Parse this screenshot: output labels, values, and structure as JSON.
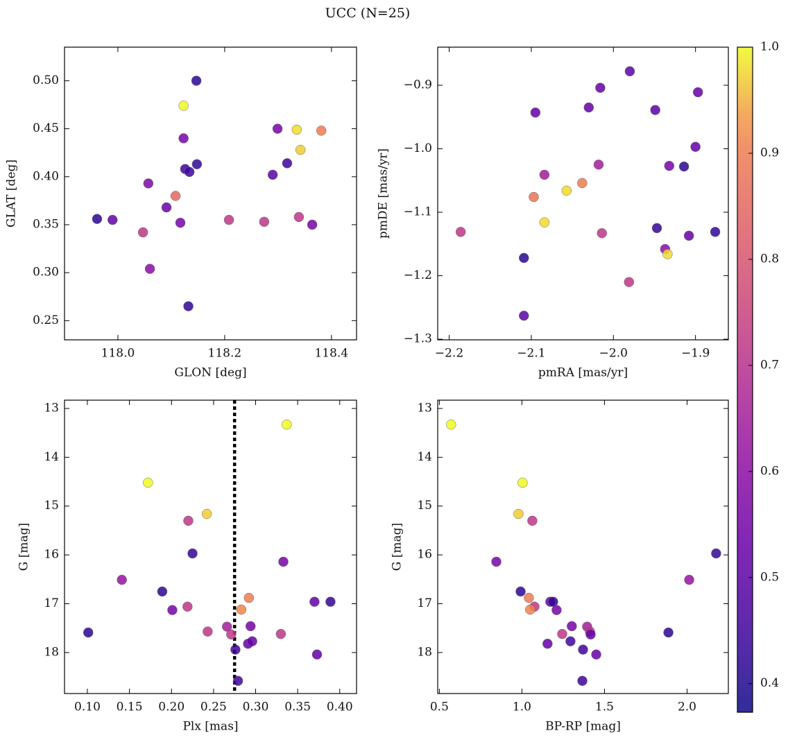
{
  "title": "UCC (N=25)",
  "colorbar": {
    "cmap": "plasma",
    "lim": [
      0.373,
      1.0
    ],
    "ticks": [
      0.4,
      0.5,
      0.6,
      0.7,
      0.8,
      0.9,
      {
        "value": 1.0,
        "label": "1.0"
      }
    ]
  },
  "chart_data": [
    {
      "type": "scatter",
      "xlabel": "GLON [deg]",
      "ylabel": "GLAT [deg]",
      "x": [
        118.147,
        118.123,
        118.123,
        118.126,
        118.134,
        118.148,
        118.057,
        118.108,
        118.091,
        118.117,
        117.961,
        117.99,
        118.047,
        118.06,
        118.132,
        118.208,
        118.274,
        118.299,
        118.335,
        118.381,
        118.342,
        118.317,
        118.29,
        118.339,
        118.364
      ],
      "values": [
        0.5,
        0.474,
        0.44,
        0.408,
        0.405,
        0.413,
        0.393,
        0.38,
        0.368,
        0.352,
        0.356,
        0.355,
        0.342,
        0.304,
        0.265,
        0.355,
        0.353,
        0.45,
        0.449,
        0.448,
        0.428,
        0.414,
        0.402,
        0.358,
        0.35
      ],
      "c": [
        0.42,
        1.0,
        0.55,
        0.45,
        0.45,
        0.43,
        0.57,
        0.85,
        0.53,
        0.55,
        0.42,
        0.52,
        0.72,
        0.6,
        0.43,
        0.72,
        0.72,
        0.55,
        0.98,
        0.9,
        0.97,
        0.45,
        0.5,
        0.72,
        0.55
      ],
      "xlim": [
        117.9,
        118.447
      ],
      "ylim": [
        0.23,
        0.535
      ],
      "xticks": [
        {
          "value": 118.0,
          "label": "118.0"
        },
        118.2,
        118.4
      ],
      "yticks": [
        0.25,
        {
          "value": 0.3,
          "label": "0.30"
        },
        0.35,
        {
          "value": 0.4,
          "label": "0.40"
        },
        0.45,
        {
          "value": 0.5,
          "label": "0.50"
        }
      ]
    },
    {
      "type": "scatter",
      "xlabel": "pmRA [mas/yr]",
      "ylabel": "pmDE [mas/yr]",
      "x": [
        -2.186,
        -2.109,
        -2.109,
        -2.097,
        -2.084,
        -2.084,
        -2.095,
        -2.057,
        -2.038,
        -2.03,
        -2.018,
        -2.016,
        -2.014,
        -1.98,
        -1.981,
        -1.949,
        -1.947,
        -1.937,
        -1.934,
        -1.932,
        -1.914,
        -1.908,
        -1.9,
        -1.897,
        -1.876
      ],
      "values": [
        -1.131,
        -1.172,
        -1.263,
        -1.076,
        -1.041,
        -1.116,
        -0.943,
        -1.066,
        -1.054,
        -0.935,
        -1.025,
        -0.904,
        -1.133,
        -0.878,
        -1.21,
        -0.939,
        -1.125,
        -1.158,
        -1.166,
        -1.027,
        -1.028,
        -1.137,
        -0.997,
        -0.911,
        -1.131
      ],
      "c": [
        0.72,
        0.42,
        0.5,
        0.88,
        0.65,
        0.98,
        0.52,
        0.98,
        0.9,
        0.52,
        0.65,
        0.52,
        0.72,
        0.5,
        0.72,
        0.5,
        0.43,
        0.6,
        0.98,
        0.55,
        0.42,
        0.52,
        0.52,
        0.52,
        0.43
      ],
      "xlim": [
        -2.214,
        -1.86
      ],
      "ylim": [
        -1.301,
        -0.84
      ],
      "xticks": [
        {
          "value": -2.2,
          "label": "−2.2"
        },
        {
          "value": -2.1,
          "label": "−2.1"
        },
        {
          "value": -2.0,
          "label": "−2.0"
        },
        {
          "value": -1.9,
          "label": "−1.9"
        }
      ],
      "yticks": [
        {
          "value": -1.3,
          "label": "−1.3"
        },
        {
          "value": -1.2,
          "label": "−1.2"
        },
        {
          "value": -1.1,
          "label": "−1.1"
        },
        {
          "value": -1.0,
          "label": "−1.0"
        },
        {
          "value": -0.9,
          "label": "−0.9"
        }
      ]
    },
    {
      "type": "scatter",
      "xlabel": "Plx [mas]",
      "ylabel": "G [mag]",
      "vline": 0.275,
      "x": [
        0.337,
        0.172,
        0.22,
        0.242,
        0.225,
        0.333,
        0.141,
        0.189,
        0.201,
        0.219,
        0.292,
        0.283,
        0.37,
        0.389,
        0.101,
        0.243,
        0.266,
        0.271,
        0.294,
        0.276,
        0.291,
        0.296,
        0.33,
        0.373,
        0.279
      ],
      "values": [
        13.33,
        14.52,
        15.3,
        15.16,
        15.97,
        16.14,
        16.51,
        16.75,
        17.13,
        17.06,
        16.88,
        17.12,
        16.96,
        16.96,
        17.59,
        17.57,
        17.47,
        17.63,
        17.46,
        17.94,
        17.82,
        17.77,
        17.62,
        18.04,
        18.58
      ],
      "c": [
        1.0,
        1.0,
        0.72,
        0.97,
        0.43,
        0.55,
        0.62,
        0.42,
        0.55,
        0.72,
        0.9,
        0.92,
        0.52,
        0.43,
        0.42,
        0.72,
        0.65,
        0.72,
        0.55,
        0.45,
        0.52,
        0.52,
        0.72,
        0.52,
        0.45
      ],
      "xlim": [
        0.0728,
        0.42
      ],
      "ylim": [
        18.84,
        12.83
      ],
      "xticks": [
        {
          "value": 0.1,
          "label": "0.10"
        },
        0.15,
        {
          "value": 0.2,
          "label": "0.20"
        },
        0.25,
        {
          "value": 0.3,
          "label": "0.30"
        },
        0.35,
        {
          "value": 0.4,
          "label": "0.40"
        }
      ],
      "yticks": [
        13,
        14,
        15,
        16,
        17,
        18
      ]
    },
    {
      "type": "scatter",
      "xlabel": "BP-RP [mag]",
      "ylabel": "G [mag]",
      "x": [
        0.571,
        1.004,
        0.979,
        1.063,
        2.176,
        0.845,
        2.013,
        0.992,
        1.042,
        1.076,
        1.05,
        1.172,
        1.189,
        1.21,
        1.887,
        1.244,
        1.302,
        1.395,
        1.412,
        1.416,
        1.155,
        1.294,
        1.37,
        1.45,
        1.366
      ],
      "values": [
        13.33,
        14.52,
        15.16,
        15.3,
        15.97,
        16.14,
        16.51,
        16.75,
        16.88,
        17.06,
        17.12,
        16.96,
        16.96,
        17.13,
        17.59,
        17.62,
        17.46,
        17.47,
        17.57,
        17.63,
        17.82,
        17.77,
        17.94,
        18.04,
        18.58
      ],
      "c": [
        1.0,
        1.0,
        0.97,
        0.72,
        0.43,
        0.55,
        0.62,
        0.42,
        0.9,
        0.72,
        0.92,
        0.52,
        0.43,
        0.55,
        0.42,
        0.72,
        0.55,
        0.65,
        0.72,
        0.52,
        0.52,
        0.45,
        0.45,
        0.52,
        0.45
      ],
      "xlim": [
        0.49,
        2.25
      ],
      "ylim": [
        18.84,
        12.83
      ],
      "xticks": [
        0.5,
        {
          "value": 1.0,
          "label": "1.0"
        },
        1.5,
        {
          "value": 2.0,
          "label": "2.0"
        }
      ],
      "yticks": [
        13,
        14,
        15,
        16,
        17,
        18
      ]
    }
  ]
}
